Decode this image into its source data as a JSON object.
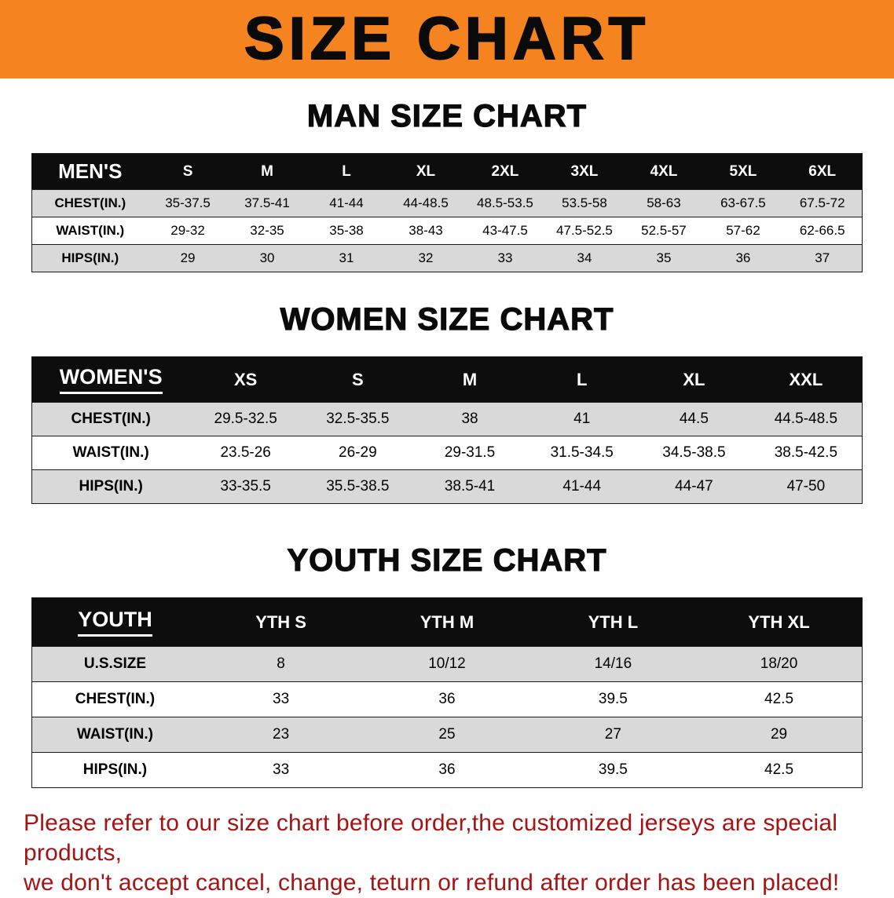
{
  "banner": {
    "title": "SIZE CHART",
    "bg_color": "#f5831f",
    "text_color": "#0a0a0a"
  },
  "colors": {
    "table_header_bg": "#0d0d0d",
    "table_header_text": "#ffffff",
    "stripe_row_bg": "#d9d9d9",
    "footer_text": "#a31414"
  },
  "sections": [
    {
      "heading": "MAN SIZE CHART",
      "table": {
        "label": "MEN'S",
        "columns": [
          "S",
          "M",
          "L",
          "XL",
          "2XL",
          "3XL",
          "4XL",
          "5XL",
          "6XL"
        ],
        "rows": [
          {
            "label": "CHEST(IN.)",
            "values": [
              "35-37.5",
              "37.5-41",
              "41-44",
              "44-48.5",
              "48.5-53.5",
              "53.5-58",
              "58-63",
              "63-67.5",
              "67.5-72"
            ]
          },
          {
            "label": "WAIST(IN.)",
            "values": [
              "29-32",
              "32-35",
              "35-38",
              "38-43",
              "43-47.5",
              "47.5-52.5",
              "52.5-57",
              "57-62",
              "62-66.5"
            ]
          },
          {
            "label": "HIPS(IN.)",
            "values": [
              "29",
              "30",
              "31",
              "32",
              "33",
              "34",
              "35",
              "36",
              "37"
            ]
          }
        ]
      }
    },
    {
      "heading": "WOMEN SIZE CHART",
      "table": {
        "label": "WOMEN'S",
        "columns": [
          "XS",
          "S",
          "M",
          "L",
          "XL",
          "XXL"
        ],
        "rows": [
          {
            "label": "CHEST(IN.)",
            "values": [
              "29.5-32.5",
              "32.5-35.5",
              "38",
              "41",
              "44.5",
              "44.5-48.5"
            ]
          },
          {
            "label": "WAIST(IN.)",
            "values": [
              "23.5-26",
              "26-29",
              "29-31.5",
              "31.5-34.5",
              "34.5-38.5",
              "38.5-42.5"
            ]
          },
          {
            "label": "HIPS(IN.)",
            "values": [
              "33-35.5",
              "35.5-38.5",
              "38.5-41",
              "41-44",
              "44-47",
              "47-50"
            ]
          }
        ]
      }
    },
    {
      "heading": "YOUTH SIZE CHART",
      "table": {
        "label": "YOUTH",
        "columns": [
          "YTH S",
          "YTH M",
          "YTH L",
          "YTH XL"
        ],
        "rows": [
          {
            "label": "U.S.SIZE",
            "values": [
              "8",
              "10/12",
              "14/16",
              "18/20"
            ]
          },
          {
            "label": "CHEST(IN.)",
            "values": [
              "33",
              "36",
              "39.5",
              "42.5"
            ]
          },
          {
            "label": "WAIST(IN.)",
            "values": [
              "23",
              "25",
              "27",
              "29"
            ]
          },
          {
            "label": "HIPS(IN.)",
            "values": [
              "33",
              "36",
              "39.5",
              "42.5"
            ]
          }
        ]
      }
    }
  ],
  "footer": {
    "lines": [
      "Please refer to our size chart before order,the customized jerseys are special products,",
      "we don't accept cancel, change, teturn or refund after order has been placed!"
    ]
  }
}
